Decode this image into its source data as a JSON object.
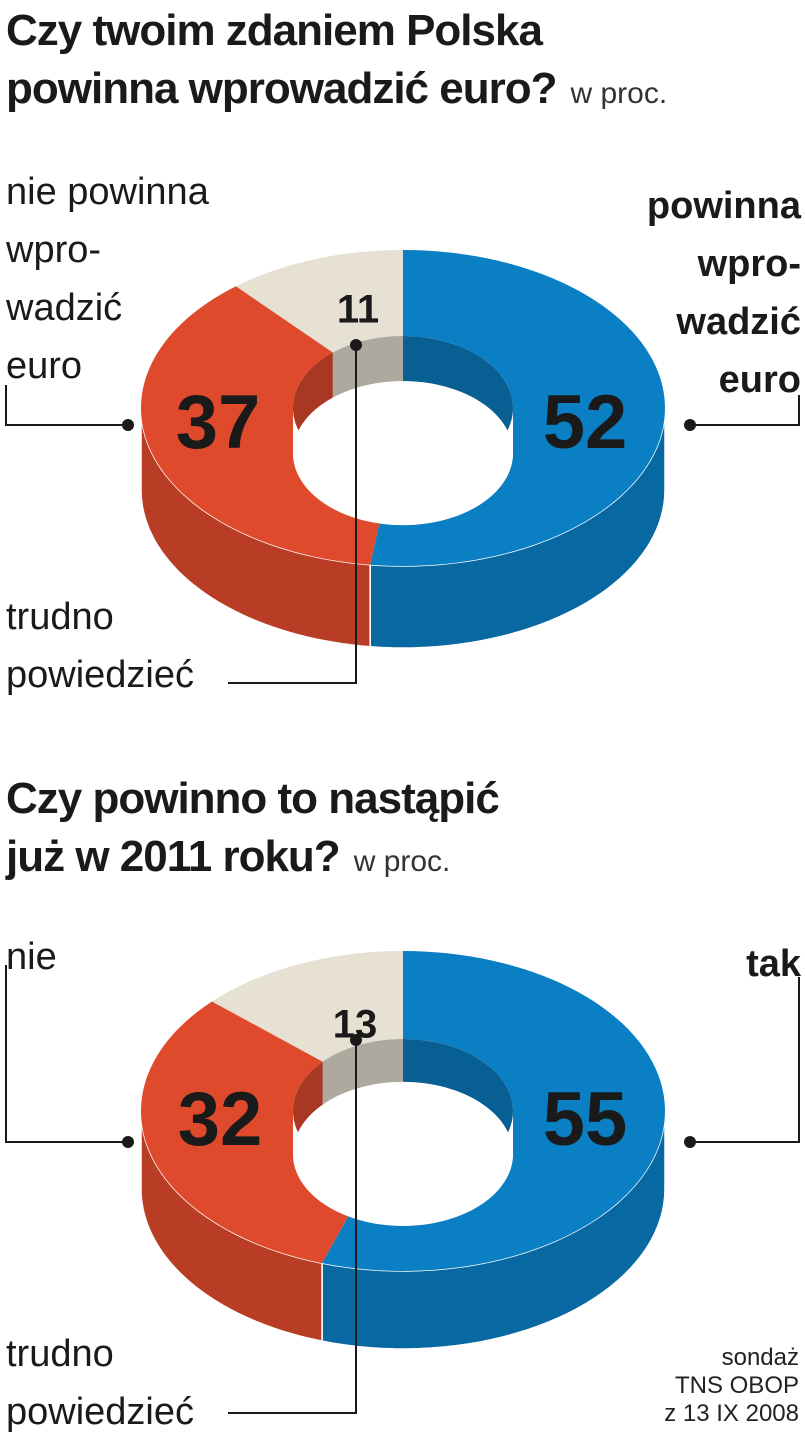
{
  "charts": [
    {
      "title_line1": "Czy twoim zdaniem Polska",
      "title_line2": "powinna wprowadzić euro?",
      "unit": "w proc.",
      "left_label": [
        "nie powinna",
        "wpro-",
        "wadzić",
        "euro"
      ],
      "right_label": [
        "powinna",
        "wpro-",
        "wadzić",
        "euro"
      ],
      "bottom_label": [
        "trudno",
        "powiedzieć"
      ]
    },
    {
      "title_line1": "Czy powinno to nastąpić",
      "title_line2": "już w 2011 roku?",
      "unit": "w proc.",
      "left_label": [
        "nie"
      ],
      "right_label": [
        "tak"
      ],
      "bottom_label": [
        "trudno",
        "powiedzieć"
      ]
    }
  ],
  "source": [
    "sondaż",
    "TNS OBOP",
    "z 13 IX 2008"
  ],
  "colors": {
    "yes": "#0a7fc4",
    "no": "#e04a2c",
    "unsure": "#e6e1d3"
  },
  "chart_data": [
    {
      "type": "pie",
      "title": "Czy twoim zdaniem Polska powinna wprowadzić euro?",
      "unit": "w proc.",
      "categories": [
        "powinna wprowadzić euro",
        "nie powinna wprowadzić euro",
        "trudno powiedzieć"
      ],
      "values": [
        52,
        37,
        11
      ]
    },
    {
      "type": "pie",
      "title": "Czy powinno to nastąpić już w 2011 roku?",
      "unit": "w proc.",
      "categories": [
        "tak",
        "nie",
        "trudno powiedzieć"
      ],
      "values": [
        55,
        32,
        13
      ]
    }
  ]
}
